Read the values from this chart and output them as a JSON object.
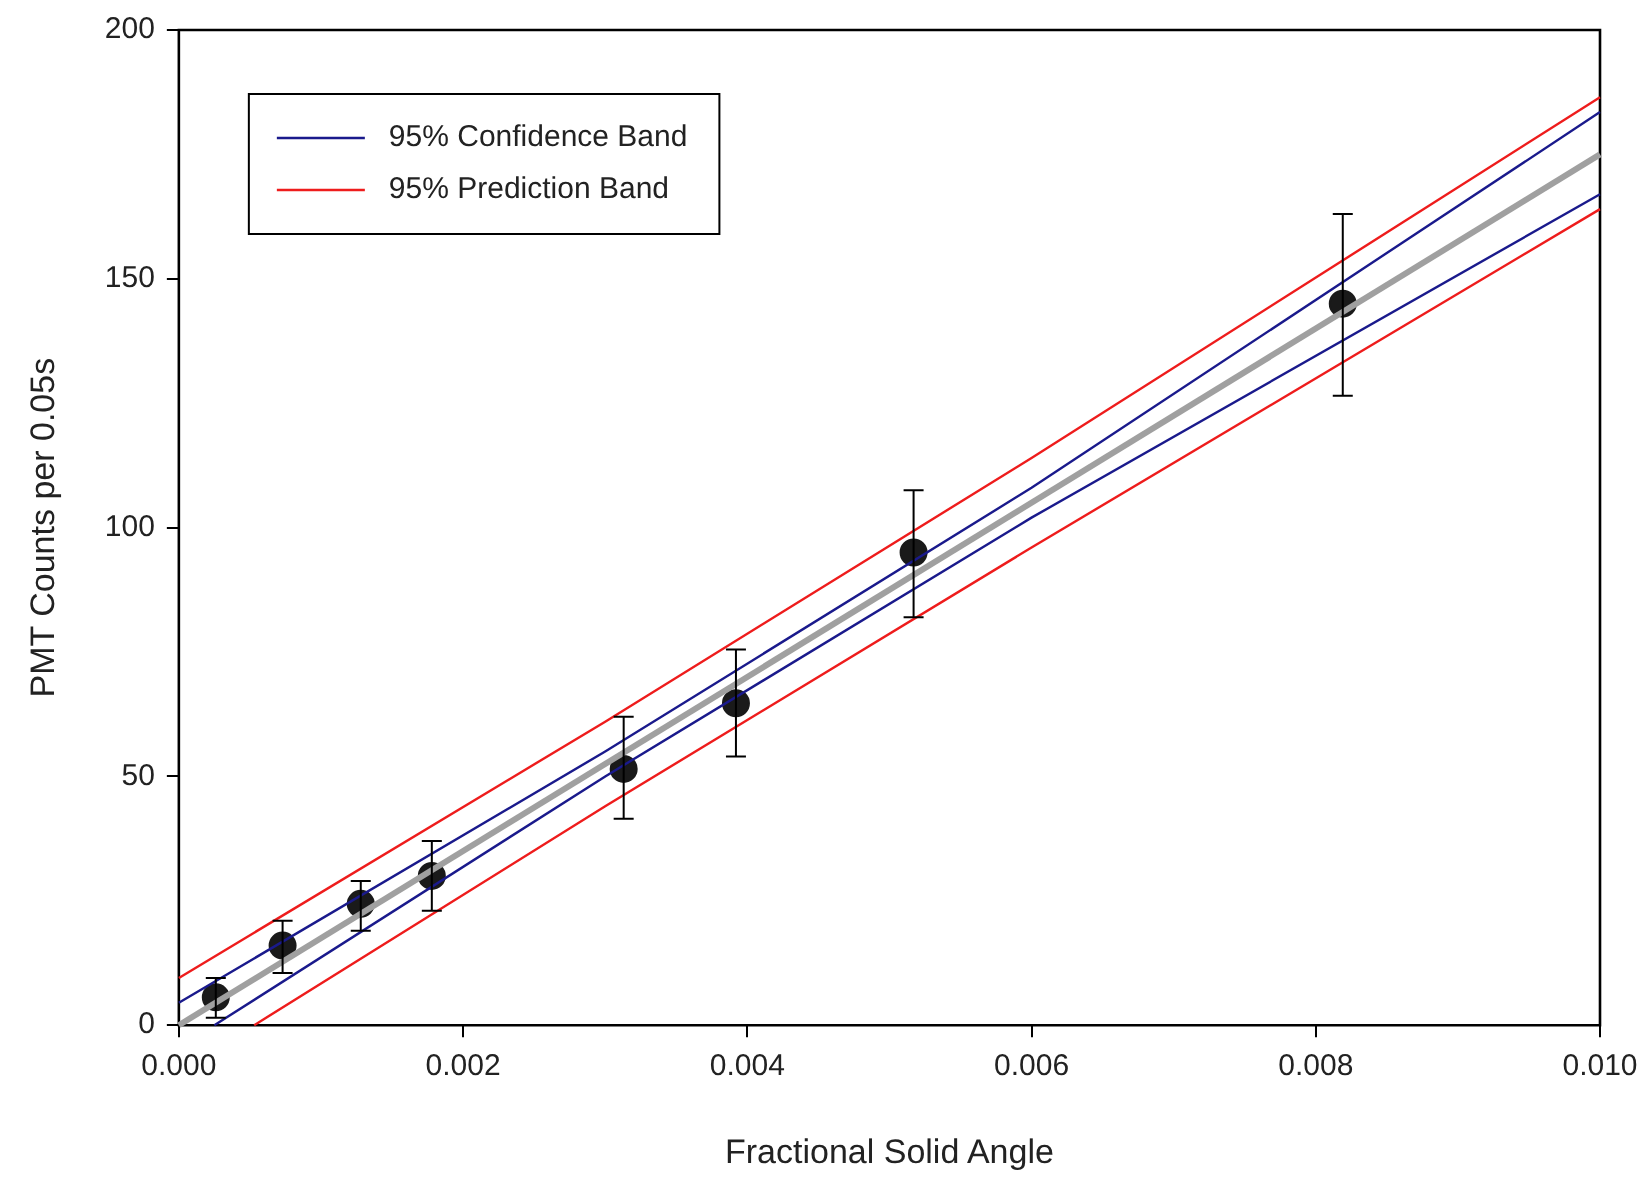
{
  "chart_data": {
    "type": "line",
    "xlabel": "Fractional Solid Angle",
    "ylabel": "PMT Counts per 0.05s",
    "xlim": [
      0,
      0.01
    ],
    "ylim": [
      0,
      200
    ],
    "xticks": [
      {
        "value": 0,
        "label": "0.000"
      },
      {
        "value": 0.002,
        "label": "0.002"
      },
      {
        "value": 0.004,
        "label": "0.004"
      },
      {
        "value": 0.006,
        "label": "0.006"
      },
      {
        "value": 0.008,
        "label": "0.008"
      },
      {
        "value": 0.01,
        "label": "0.010"
      }
    ],
    "yticks": [
      0,
      50,
      100,
      150,
      200
    ],
    "grid": false,
    "legend": "top left",
    "line_style": "solid",
    "series": [
      {
        "name": "95% Confidence Band",
        "type": "line",
        "color": "#1a1a8c",
        "x": [
          0,
          0.003,
          0.006,
          0.01
        ],
        "values": [
          4.5,
          55,
          108,
          183.5
        ]
      },
      {
        "type": "line",
        "color": "#1a1a8c",
        "x": [
          0.00025,
          0.003,
          0.006,
          0.01
        ],
        "values": [
          0,
          50,
          102,
          167
        ]
      },
      {
        "name": "95% Prediction Band",
        "type": "line",
        "color": "#ee1c1c",
        "x": [
          0,
          0.003,
          0.006,
          0.01
        ],
        "values": [
          9.5,
          61,
          114,
          186.5
        ]
      },
      {
        "type": "line",
        "color": "#ee1c1c",
        "x": [
          0.00053,
          0.003,
          0.006,
          0.01
        ],
        "values": [
          0,
          44,
          96,
          164
        ]
      },
      {
        "type": "line",
        "color": "#a0a0a0",
        "x": [
          0,
          0.01
        ],
        "values": [
          0,
          175
        ]
      },
      {
        "type": "scatter",
        "color": "#1a1a1a",
        "marker": "circle",
        "x": [
          0.00026,
          0.00073,
          0.00128,
          0.00178,
          0.00313,
          0.00392,
          0.00517,
          0.00819
        ],
        "values": [
          5.6,
          16,
          24.4,
          30,
          51.5,
          64.7,
          95,
          145
        ],
        "errors": [
          [
            1.5,
            9.5
          ],
          [
            10.5,
            21
          ],
          [
            19,
            29
          ],
          [
            23,
            37
          ],
          [
            41.5,
            62
          ],
          [
            54,
            75.5
          ],
          [
            82,
            107.5
          ],
          [
            126.5,
            163
          ]
        ]
      }
    ]
  }
}
